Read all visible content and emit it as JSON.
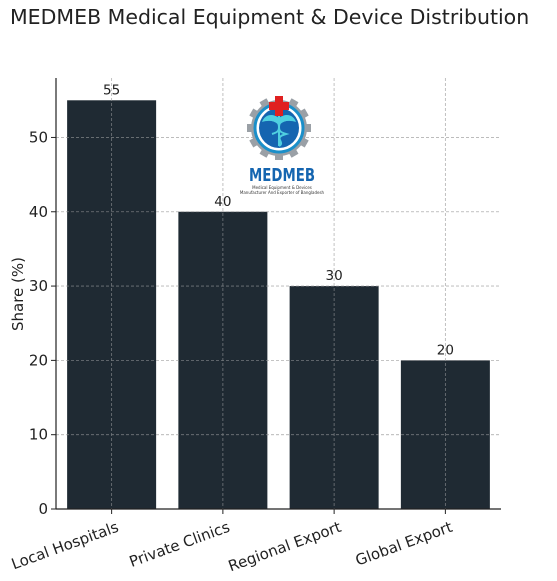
{
  "chart_data": {
    "type": "bar",
    "title": "MEDMEB Medical Equipment & Device Distribution",
    "xlabel": "",
    "ylabel": "Share (%)",
    "categories": [
      "Local Hospitals",
      "Private Clinics",
      "Regional Export",
      "Global Export"
    ],
    "values": [
      55,
      40,
      30,
      20
    ],
    "ylim": [
      0,
      58
    ],
    "yticks": [
      0,
      10,
      20,
      30,
      40,
      50
    ],
    "grid": true,
    "bar_color": "#1f2a33",
    "x_tick_rotation_deg": -20
  },
  "logo": {
    "name": "MEDMEB",
    "tagline_line1": "Medical Equipment & Devices",
    "tagline_line2": "Manufacturer And Exporter of Bangladesh",
    "colors": {
      "gear": "#9aa0a6",
      "ring": "#1b8fc9",
      "inner": "#1565b0",
      "cross": "#e02020",
      "text": "#1565b0"
    }
  }
}
